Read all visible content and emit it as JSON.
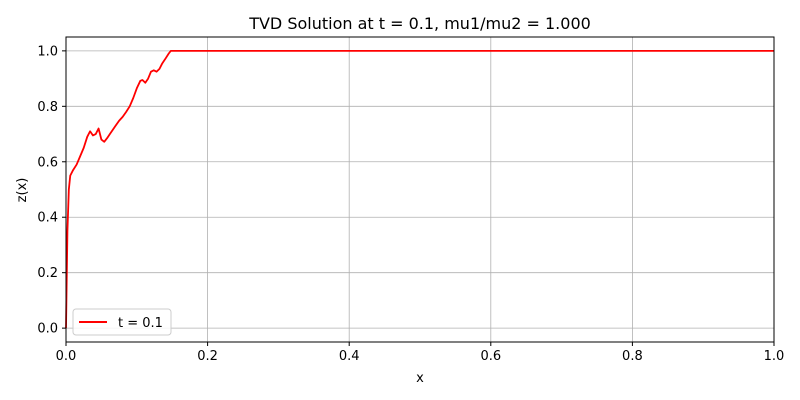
{
  "chart_data": {
    "type": "line",
    "title": "TVD Solution at t = 0.1, mu1/mu2 = 1.000",
    "xlabel": "x",
    "ylabel": "z(x)",
    "xlim": [
      0.0,
      1.0
    ],
    "ylim": [
      -0.05,
      1.05
    ],
    "x_ticks": [
      0.0,
      0.2,
      0.4,
      0.6,
      0.8,
      1.0
    ],
    "x_tick_labels": [
      "0.0",
      "0.2",
      "0.4",
      "0.6",
      "0.8",
      "1.0"
    ],
    "y_ticks": [
      0.0,
      0.2,
      0.4,
      0.6,
      0.8,
      1.0
    ],
    "y_tick_labels": [
      "0.0",
      "0.2",
      "0.4",
      "0.6",
      "0.8",
      "1.0"
    ],
    "grid": true,
    "legend_position": "lower-left",
    "series": [
      {
        "name": "t = 0.1",
        "color": "#ff0000",
        "x": [
          0.0,
          0.002,
          0.004,
          0.006,
          0.01,
          0.015,
          0.02,
          0.025,
          0.03,
          0.034,
          0.038,
          0.042,
          0.046,
          0.05,
          0.054,
          0.058,
          0.062,
          0.066,
          0.07,
          0.075,
          0.08,
          0.085,
          0.09,
          0.095,
          0.1,
          0.105,
          0.108,
          0.112,
          0.116,
          0.12,
          0.124,
          0.128,
          0.132,
          0.136,
          0.14,
          0.145,
          0.148,
          0.15,
          0.2,
          0.4,
          0.6,
          0.8,
          1.0
        ],
        "y": [
          0.0,
          0.35,
          0.5,
          0.55,
          0.57,
          0.59,
          0.62,
          0.65,
          0.69,
          0.71,
          0.695,
          0.7,
          0.72,
          0.68,
          0.672,
          0.685,
          0.7,
          0.715,
          0.73,
          0.748,
          0.762,
          0.78,
          0.8,
          0.83,
          0.865,
          0.892,
          0.895,
          0.885,
          0.9,
          0.925,
          0.93,
          0.925,
          0.935,
          0.955,
          0.97,
          0.99,
          1.0,
          1.0,
          1.0,
          1.0,
          1.0,
          1.0,
          1.0
        ]
      }
    ]
  }
}
